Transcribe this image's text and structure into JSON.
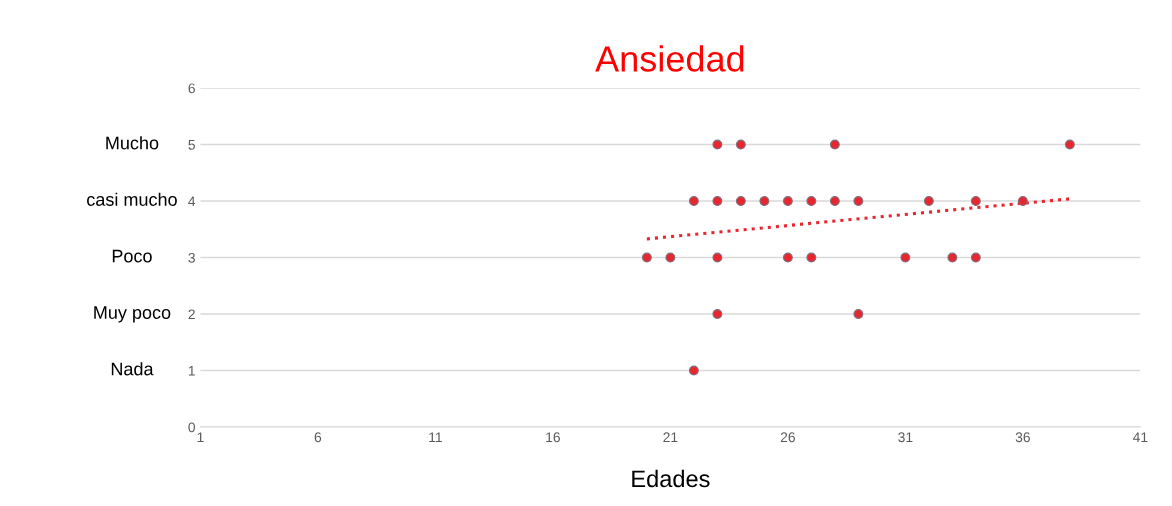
{
  "chart_data": {
    "type": "scatter",
    "title": "Ansiedad",
    "xlabel": "Edades",
    "xlim": [
      1,
      41
    ],
    "xticks": [
      1,
      6,
      11,
      16,
      21,
      26,
      31,
      36,
      41
    ],
    "ylim": [
      0,
      6
    ],
    "yticks": [
      0,
      1,
      2,
      3,
      4,
      5,
      6
    ],
    "grid": "y",
    "marker": "circle",
    "legend": false,
    "annotations": [
      "Mucho",
      "casi mucho",
      "Poco",
      "Muy poco",
      "Nada"
    ],
    "series": [
      {
        "color": "#e8262e",
        "x": [
          23,
          24,
          28,
          38,
          22,
          23,
          24,
          25,
          26,
          27,
          28,
          29,
          32,
          34,
          36,
          20,
          21,
          23,
          26,
          27,
          31,
          33,
          34,
          23,
          29,
          22
        ],
        "values": [
          5,
          5,
          5,
          5,
          4,
          4,
          4,
          4,
          4,
          4,
          4,
          4,
          4,
          4,
          4,
          3,
          3,
          3,
          3,
          3,
          3,
          3,
          3,
          2,
          2,
          1
        ]
      },
      {
        "type": "line",
        "color": "#e8262e",
        "line_style": "dotted",
        "marker": "none",
        "x": [
          20,
          38
        ],
        "values": [
          3.33,
          4.04
        ]
      }
    ]
  }
}
